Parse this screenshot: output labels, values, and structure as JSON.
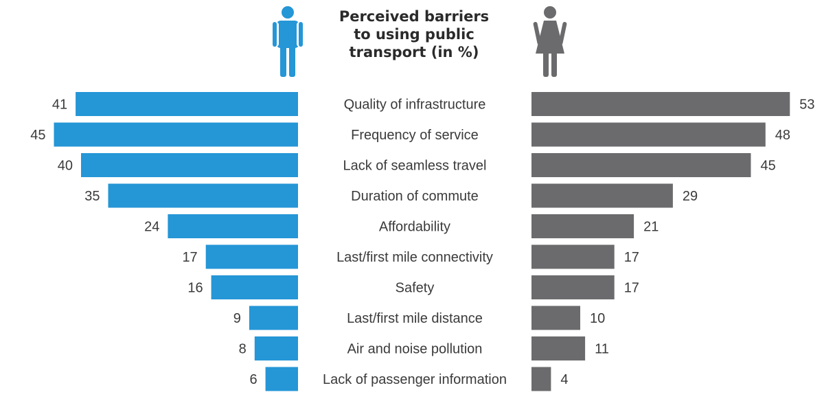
{
  "chart_data": {
    "type": "bar",
    "title": [
      "Perceived barriers",
      "to using public",
      "transport (in %)"
    ],
    "categories": [
      "Quality of infrastructure",
      "Frequency of service",
      "Lack of seamless travel",
      "Duration of commute",
      "Affordability",
      "Last/first mile connectivity",
      "Safety",
      "Last/first mile distance",
      "Air and noise pollution",
      "Lack of passenger information"
    ],
    "series": [
      {
        "values": [
          41,
          45,
          40,
          35,
          24,
          17,
          16,
          9,
          8,
          6
        ],
        "color": "#2596d6",
        "icon": "male-person-icon"
      },
      {
        "values": [
          53,
          48,
          45,
          29,
          21,
          17,
          17,
          10,
          11,
          4
        ],
        "color": "#6b6b6d",
        "icon": "female-person-icon"
      }
    ],
    "xlim": [
      0,
      53
    ]
  }
}
